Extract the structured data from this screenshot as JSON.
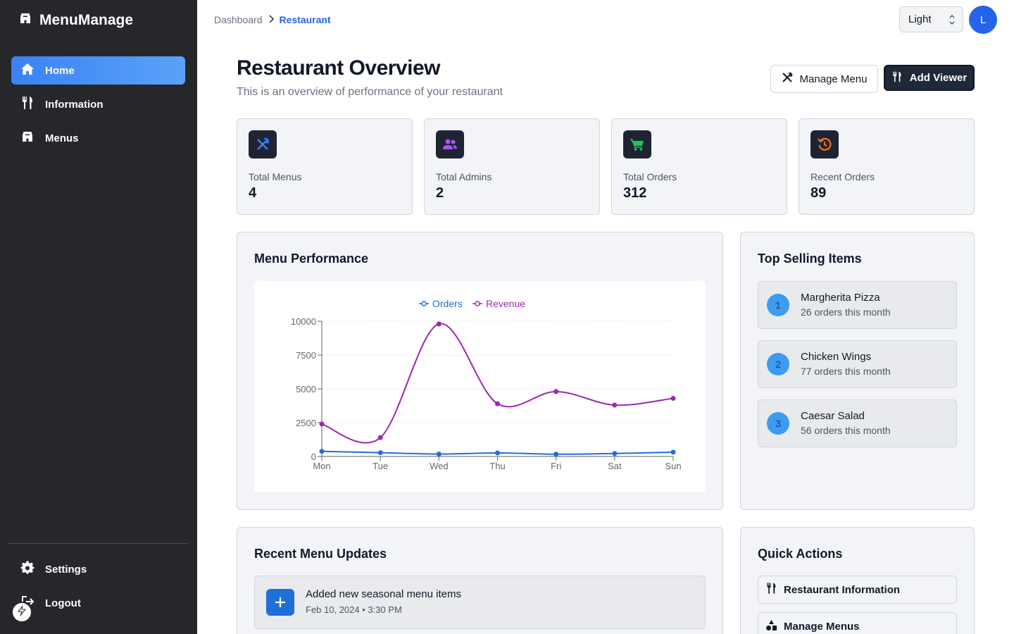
{
  "app": {
    "name": "MenuManage"
  },
  "sidebar": {
    "items": [
      {
        "label": "Home",
        "icon": "home-icon",
        "active": true
      },
      {
        "label": "Information",
        "icon": "utensils-icon",
        "active": false
      },
      {
        "label": "Menus",
        "icon": "store-icon",
        "active": false
      }
    ],
    "bottom": [
      {
        "label": "Settings",
        "icon": "gear-icon"
      },
      {
        "label": "Logout",
        "icon": "logout-icon"
      }
    ]
  },
  "breadcrumb": {
    "home": "Dashboard",
    "current": "Restaurant"
  },
  "theme": {
    "selected": "Light"
  },
  "user": {
    "initial": "L"
  },
  "header": {
    "title": "Restaurant Overview",
    "subtitle": "This is an overview of performance of your restaurant",
    "manage_menu": "Manage Menu",
    "add_viewer": "Add Viewer"
  },
  "stats": [
    {
      "label": "Total Menus",
      "value": "4",
      "icon": "utensils-crossed-icon",
      "color": "#3b82f6"
    },
    {
      "label": "Total Admins",
      "value": "2",
      "icon": "users-icon",
      "color": "#a855f7"
    },
    {
      "label": "Total Orders",
      "value": "312",
      "icon": "cart-icon",
      "color": "#22c55e"
    },
    {
      "label": "Recent Orders",
      "value": "89",
      "icon": "history-icon",
      "color": "#f97316"
    }
  ],
  "performance": {
    "title": "Menu Performance"
  },
  "chart_data": {
    "type": "line",
    "categories": [
      "Mon",
      "Tue",
      "Wed",
      "Thu",
      "Fri",
      "Sat",
      "Sun"
    ],
    "series": [
      {
        "name": "Orders",
        "color": "#1f6fd6",
        "values": [
          380,
          280,
          180,
          260,
          170,
          220,
          320
        ]
      },
      {
        "name": "Revenue",
        "color": "#9c27b0",
        "values": [
          2400,
          1400,
          9800,
          3900,
          4800,
          3800,
          4300
        ]
      }
    ],
    "ylim": [
      0,
      10000
    ],
    "yticks": [
      "0",
      "2500",
      "5000",
      "7500",
      "10000"
    ],
    "grid": true,
    "legend": "top"
  },
  "top_selling": {
    "title": "Top Selling Items",
    "items": [
      {
        "rank": "1",
        "name": "Margherita Pizza",
        "sub": "26 orders this month"
      },
      {
        "rank": "2",
        "name": "Chicken Wings",
        "sub": "77 orders this month"
      },
      {
        "rank": "3",
        "name": "Caesar Salad",
        "sub": "56 orders this month"
      }
    ]
  },
  "updates": {
    "title": "Recent Menu Updates",
    "items": [
      {
        "title": "Added new seasonal menu items",
        "time": "Feb 10, 2024 • 3:30 PM"
      }
    ]
  },
  "quick_actions": {
    "title": "Quick Actions",
    "items": [
      {
        "label": "Restaurant Information",
        "icon": "utensils-icon"
      },
      {
        "label": "Manage Menus",
        "icon": "shapes-icon"
      }
    ]
  }
}
